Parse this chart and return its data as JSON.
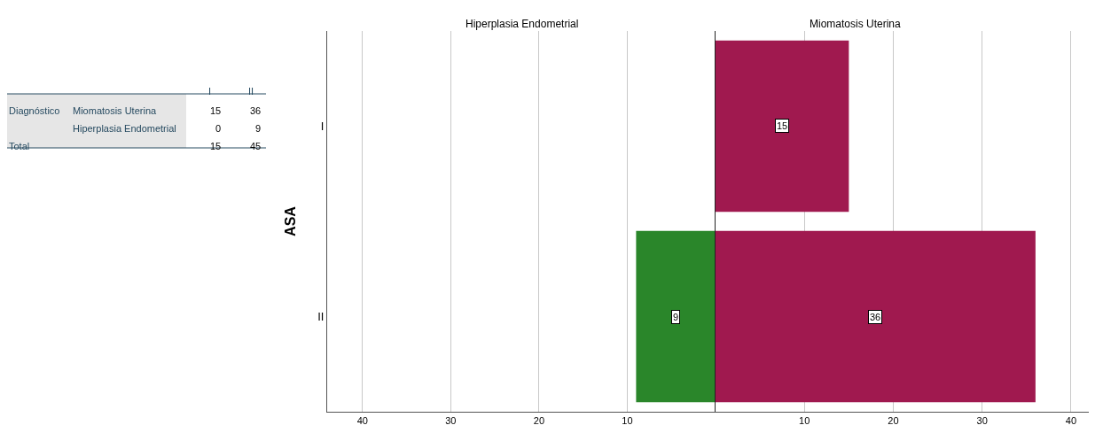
{
  "chart_data": [
    {
      "type": "bar",
      "orientation": "horizontal",
      "title": "Hiperplasia Endometrial",
      "ylabel": "ASA",
      "categories": [
        "I",
        "II"
      ],
      "xlim": [
        44,
        0
      ],
      "xticks": [
        40,
        30,
        20,
        10
      ],
      "grid": "x",
      "series": [
        {
          "color": "#2a862a",
          "values": [
            0,
            9
          ],
          "value_labels": [
            null,
            "9"
          ]
        }
      ],
      "annotations": [
        "Diagnóstico",
        "Miomatosis Uterina",
        "15",
        "36",
        "Hiperplasia Endometrial",
        "0",
        "9",
        "Total",
        "15",
        "45"
      ]
    },
    {
      "type": "bar",
      "orientation": "horizontal",
      "title": "Miomatosis Uterina",
      "categories": [
        "I",
        "II"
      ],
      "xlim": [
        0,
        42
      ],
      "xticks": [
        10,
        20,
        30,
        40
      ],
      "grid": "x",
      "data_labels": true,
      "tick_labels": "x",
      "series": [
        {
          "color": "#a0194f",
          "values": [
            15,
            36
          ]
        }
      ]
    }
  ]
}
